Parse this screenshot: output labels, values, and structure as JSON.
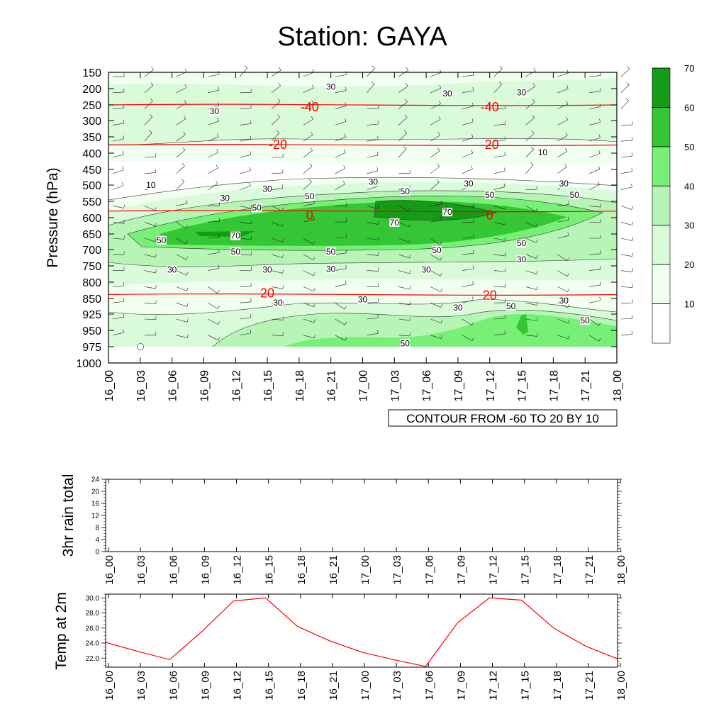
{
  "title": "Station: GAYA",
  "colors": {
    "temperature_contour": "#ff0000",
    "series_line": "#ff0000",
    "shade_levels": [
      "#ffffff",
      "#f0fff0",
      "#d9fbd9",
      "#b7f5b7",
      "#78f078",
      "#34c634",
      "#159b15"
    ]
  },
  "chart_data": [
    {
      "type": "contour",
      "ylabel": "Pressure (hPa)",
      "y_ticks": [
        150,
        200,
        250,
        300,
        350,
        400,
        450,
        500,
        550,
        600,
        650,
        700,
        750,
        800,
        850,
        925,
        950,
        975,
        1000
      ],
      "x_ticks": [
        "16_00",
        "16_03",
        "16_06",
        "16_09",
        "16_12",
        "16_15",
        "16_18",
        "16_21",
        "17_00",
        "17_03",
        "17_06",
        "17_09",
        "17_12",
        "17_15",
        "17_18",
        "17_21",
        "18_00"
      ],
      "caption": "CONTOUR FROM -60 TO 20 BY 10",
      "colorbar": {
        "levels": [
          10,
          20,
          30,
          40,
          50,
          60,
          70
        ],
        "placement": "right"
      },
      "temperature_contours": [
        {
          "value": -40,
          "level": 250
        },
        {
          "value": -20,
          "level": 375
        },
        {
          "value": 0,
          "level": 580
        },
        {
          "value": 20,
          "level": 838
        }
      ],
      "temperature_labels": [
        {
          "text": "-40",
          "x": "16_19",
          "level": 255
        },
        {
          "text": "-40",
          "x": "17_12",
          "level": 255
        },
        {
          "text": "-20",
          "x": "16_16",
          "level": 372
        },
        {
          "text": "-20",
          "x": "17_12",
          "level": 372
        },
        {
          "text": "0",
          "x": "16_19",
          "level": 590
        },
        {
          "text": "0",
          "x": "17_12",
          "level": 590
        },
        {
          "text": "20",
          "x": "16_15",
          "level": 832
        },
        {
          "text": "20",
          "x": "17_12",
          "level": 838
        }
      ],
      "shade_labels": [
        {
          "text": "30",
          "x": "16_21",
          "level": 195
        },
        {
          "text": "30",
          "x": "17_08",
          "level": 215
        },
        {
          "text": "30",
          "x": "17_15",
          "level": 212
        },
        {
          "text": "30",
          "x": "16_10",
          "level": 270
        },
        {
          "text": "10",
          "x": "17_17",
          "level": 398
        },
        {
          "text": "10",
          "x": "16_04",
          "level": 500
        },
        {
          "text": "30",
          "x": "16_15",
          "level": 512
        },
        {
          "text": "30",
          "x": "17_01",
          "level": 490
        },
        {
          "text": "30",
          "x": "17_10",
          "level": 495
        },
        {
          "text": "30",
          "x": "17_19",
          "level": 495
        },
        {
          "text": "30",
          "x": "16_11",
          "level": 540
        },
        {
          "text": "50",
          "x": "16_14",
          "level": 570
        },
        {
          "text": "50",
          "x": "16_19",
          "level": 535
        },
        {
          "text": "50",
          "x": "17_04",
          "level": 520
        },
        {
          "text": "50",
          "x": "17_12",
          "level": 530
        },
        {
          "text": "50",
          "x": "17_20",
          "level": 530
        },
        {
          "text": "70",
          "x": "17_08",
          "level": 583
        },
        {
          "text": "70",
          "x": "17_03",
          "level": 615
        },
        {
          "text": "70",
          "x": "16_12",
          "level": 656
        },
        {
          "text": "50",
          "x": "16_05",
          "level": 670
        },
        {
          "text": "50",
          "x": "16_12",
          "level": 706
        },
        {
          "text": "50",
          "x": "16_21",
          "level": 706
        },
        {
          "text": "50",
          "x": "17_07",
          "level": 702
        },
        {
          "text": "50",
          "x": "17_15",
          "level": 680
        },
        {
          "text": "30",
          "x": "17_15",
          "level": 730
        },
        {
          "text": "30",
          "x": "16_06",
          "level": 762
        },
        {
          "text": "30",
          "x": "16_15",
          "level": 762
        },
        {
          "text": "30",
          "x": "16_21",
          "level": 760
        },
        {
          "text": "30",
          "x": "17_06",
          "level": 762
        },
        {
          "text": "30",
          "x": "16_16",
          "level": 870
        },
        {
          "text": "30",
          "x": "17_00",
          "level": 855
        },
        {
          "text": "30",
          "x": "17_09",
          "level": 895
        },
        {
          "text": "50",
          "x": "17_14",
          "level": 887
        },
        {
          "text": "30",
          "x": "17_19",
          "level": 860
        },
        {
          "text": "50",
          "x": "17_21",
          "level": 935
        },
        {
          "text": "50",
          "x": "17_04",
          "level": 970
        }
      ]
    },
    {
      "type": "line",
      "ylabel": "3hr rain total",
      "y_ticks": [
        0,
        4,
        8,
        12,
        16,
        20,
        24
      ],
      "ylim": [
        0,
        24
      ],
      "x_ticks": [
        "16_00",
        "16_03",
        "16_06",
        "16_09",
        "16_12",
        "16_15",
        "16_18",
        "16_21",
        "17_00",
        "17_03",
        "17_06",
        "17_09",
        "17_12",
        "17_15",
        "17_18",
        "17_21",
        "18_00"
      ],
      "values": []
    },
    {
      "type": "line",
      "ylabel": "Temp at 2m",
      "y_ticks": [
        "22.0",
        "24.0",
        "26.0",
        "28.0",
        "30.0"
      ],
      "ylim": [
        20.8,
        30.5
      ],
      "x_ticks": [
        "16_00",
        "16_03",
        "16_06",
        "16_09",
        "16_12",
        "16_15",
        "16_18",
        "16_21",
        "17_00",
        "17_03",
        "17_06",
        "17_09",
        "17_12",
        "17_15",
        "17_18",
        "17_21",
        "18_00"
      ],
      "values": [
        24.1,
        22.9,
        21.8,
        25.5,
        29.6,
        30.0,
        26.2,
        24.3,
        22.8,
        21.8,
        20.9,
        26.7,
        30.0,
        29.7,
        26.0,
        23.6,
        21.9
      ]
    }
  ]
}
